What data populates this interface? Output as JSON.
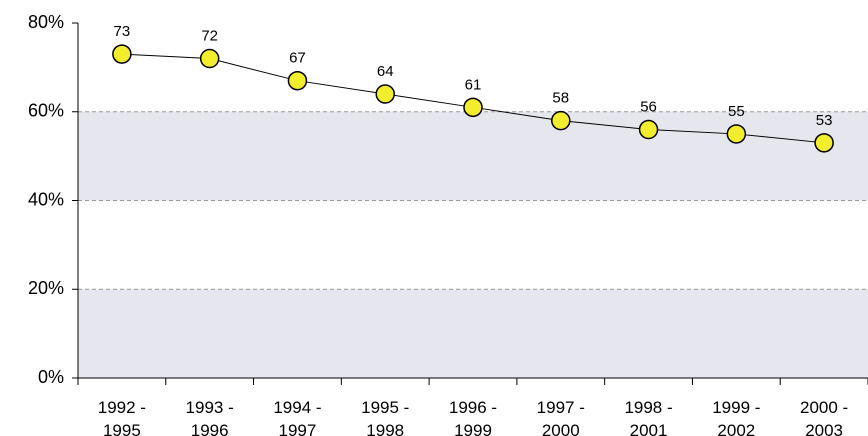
{
  "chart_data": {
    "type": "line",
    "categories": [
      "1992 - 1995",
      "1993 - 1996",
      "1994 - 1997",
      "1995 - 1998",
      "1996 - 1999",
      "1997 - 2000",
      "1998 - 2001",
      "1999 - 2002",
      "2000 - 2003"
    ],
    "values": [
      73,
      72,
      67,
      64,
      61,
      58,
      56,
      55,
      53
    ],
    "color": "#000000",
    "marker_color": "#f2ee2e",
    "ylim": [
      0,
      80
    ],
    "yticks": [
      {
        "value": 0,
        "label": "0%"
      },
      {
        "value": 20,
        "label": "20%"
      },
      {
        "value": 40,
        "label": "40%"
      },
      {
        "value": 60,
        "label": "60%"
      },
      {
        "value": 80,
        "label": "80%"
      }
    ],
    "grid": true
  }
}
